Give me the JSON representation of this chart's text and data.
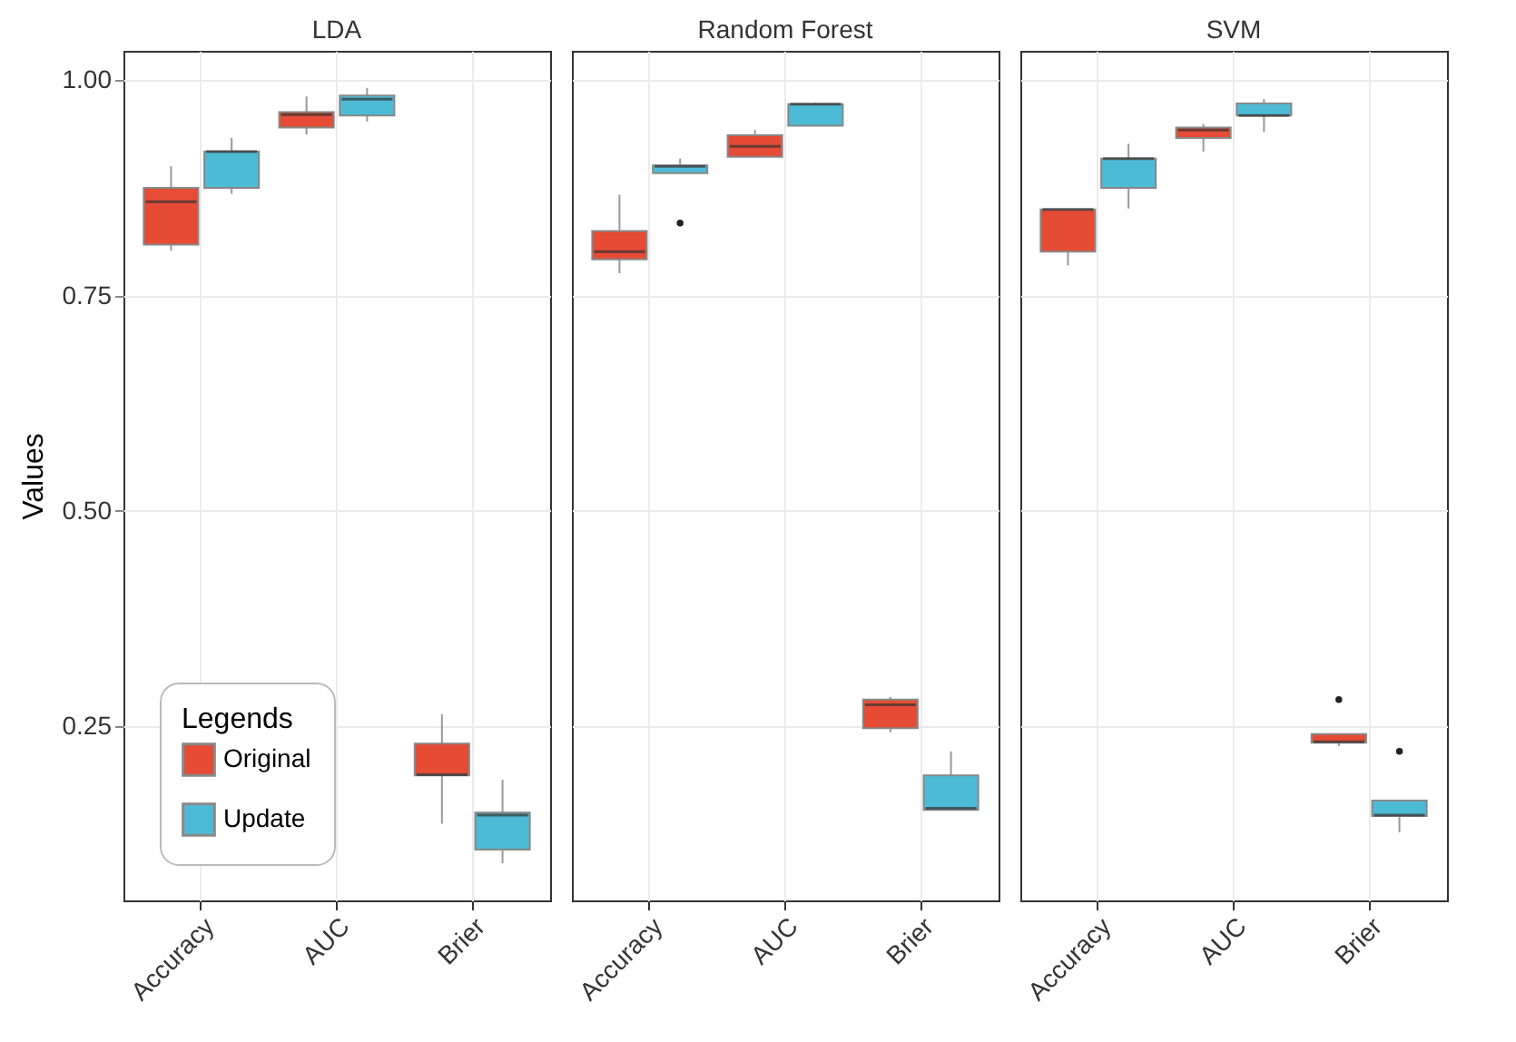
{
  "chart_data": [
    {
      "type": "box",
      "title": "LDA",
      "ylabel": "Values",
      "categories": [
        "Accuracy",
        "AUC",
        "Brier"
      ],
      "ylim": [
        0.048,
        1.034
      ],
      "yticks": [
        0.25,
        {
          "value": 0.5,
          "label": "0.50"
        },
        {
          "value": 0.75,
          "label": "0.75"
        },
        {
          "value": 1,
          "label": "1.00"
        }
      ],
      "grid": true,
      "legend": "bottom left",
      "legend_title": "Legends",
      "series": [
        {
          "name": "Original",
          "color": "#e64b35",
          "boxes": [
            {
              "low": 0.802,
              "q1": 0.809,
              "median": 0.859,
              "q3": 0.875,
              "high": 0.9
            },
            {
              "low": 0.937,
              "q1": 0.945,
              "median": 0.96,
              "q3": 0.963,
              "high": 0.981
            },
            {
              "low": 0.137,
              "q1": 0.193,
              "median": 0.194,
              "q3": 0.23,
              "high": 0.264
            }
          ]
        },
        {
          "name": "Update",
          "color": "#4dbbd5",
          "boxes": [
            {
              "low": 0.868,
              "q1": 0.875,
              "median": 0.917,
              "q3": 0.917,
              "high": 0.933
            },
            {
              "low": 0.952,
              "q1": 0.959,
              "median": 0.978,
              "q3": 0.982,
              "high": 0.991
            },
            {
              "low": 0.091,
              "q1": 0.107,
              "median": 0.147,
              "q3": 0.15,
              "high": 0.188
            }
          ]
        }
      ]
    },
    {
      "type": "box",
      "title": "Random Forest",
      "categories": [
        "Accuracy",
        "AUC",
        "Brier"
      ],
      "ylim": [
        0.048,
        1.034
      ],
      "yticks": [
        0.25,
        0.5,
        0.75,
        1
      ],
      "grid": true,
      "tick_labels": "x",
      "series": [
        {
          "name": "Original",
          "color": "#e64b35",
          "boxes": [
            {
              "low": 0.776,
              "q1": 0.792,
              "median": 0.801,
              "q3": 0.825,
              "high": 0.867
            },
            {
              "low": 0.911,
              "q1": 0.911,
              "median": 0.923,
              "q3": 0.936,
              "high": 0.942
            },
            {
              "low": 0.243,
              "q1": 0.248,
              "median": 0.275,
              "q3": 0.281,
              "high": 0.284
            }
          ]
        },
        {
          "name": "Update",
          "color": "#4dbbd5",
          "boxes": [
            {
              "low": 0.892,
              "q1": 0.892,
              "median": 0.9,
              "q3": 0.901,
              "high": 0.909,
              "outliers": [
                0.834
              ]
            },
            {
              "low": 0.947,
              "q1": 0.947,
              "median": 0.972,
              "q3": 0.972,
              "high": 0.974
            },
            {
              "low": 0.153,
              "q1": 0.153,
              "median": 0.155,
              "q3": 0.193,
              "high": 0.221
            }
          ]
        }
      ]
    },
    {
      "type": "box",
      "title": "SVM",
      "categories": [
        "Accuracy",
        "AUC",
        "Brier"
      ],
      "ylim": [
        0.048,
        1.034
      ],
      "yticks": [
        0.25,
        0.5,
        0.75,
        1
      ],
      "grid": true,
      "tick_labels": "x",
      "series": [
        {
          "name": "Original",
          "color": "#e64b35",
          "boxes": [
            {
              "low": 0.785,
              "q1": 0.801,
              "median": 0.85,
              "q3": 0.85,
              "high": 0.85
            },
            {
              "low": 0.917,
              "q1": 0.933,
              "median": 0.942,
              "q3": 0.945,
              "high": 0.949
            },
            {
              "low": 0.227,
              "q1": 0.231,
              "median": 0.232,
              "q3": 0.241,
              "high": 0.241,
              "outliers": [
                0.281
              ]
            }
          ]
        },
        {
          "name": "Update",
          "color": "#4dbbd5",
          "boxes": [
            {
              "low": 0.851,
              "q1": 0.875,
              "median": 0.909,
              "q3": 0.909,
              "high": 0.926
            },
            {
              "low": 0.94,
              "q1": 0.959,
              "median": 0.959,
              "q3": 0.973,
              "high": 0.978
            },
            {
              "low": 0.127,
              "q1": 0.146,
              "median": 0.147,
              "q3": 0.164,
              "high": 0.164,
              "outliers": [
                0.221
              ]
            }
          ]
        }
      ]
    }
  ]
}
